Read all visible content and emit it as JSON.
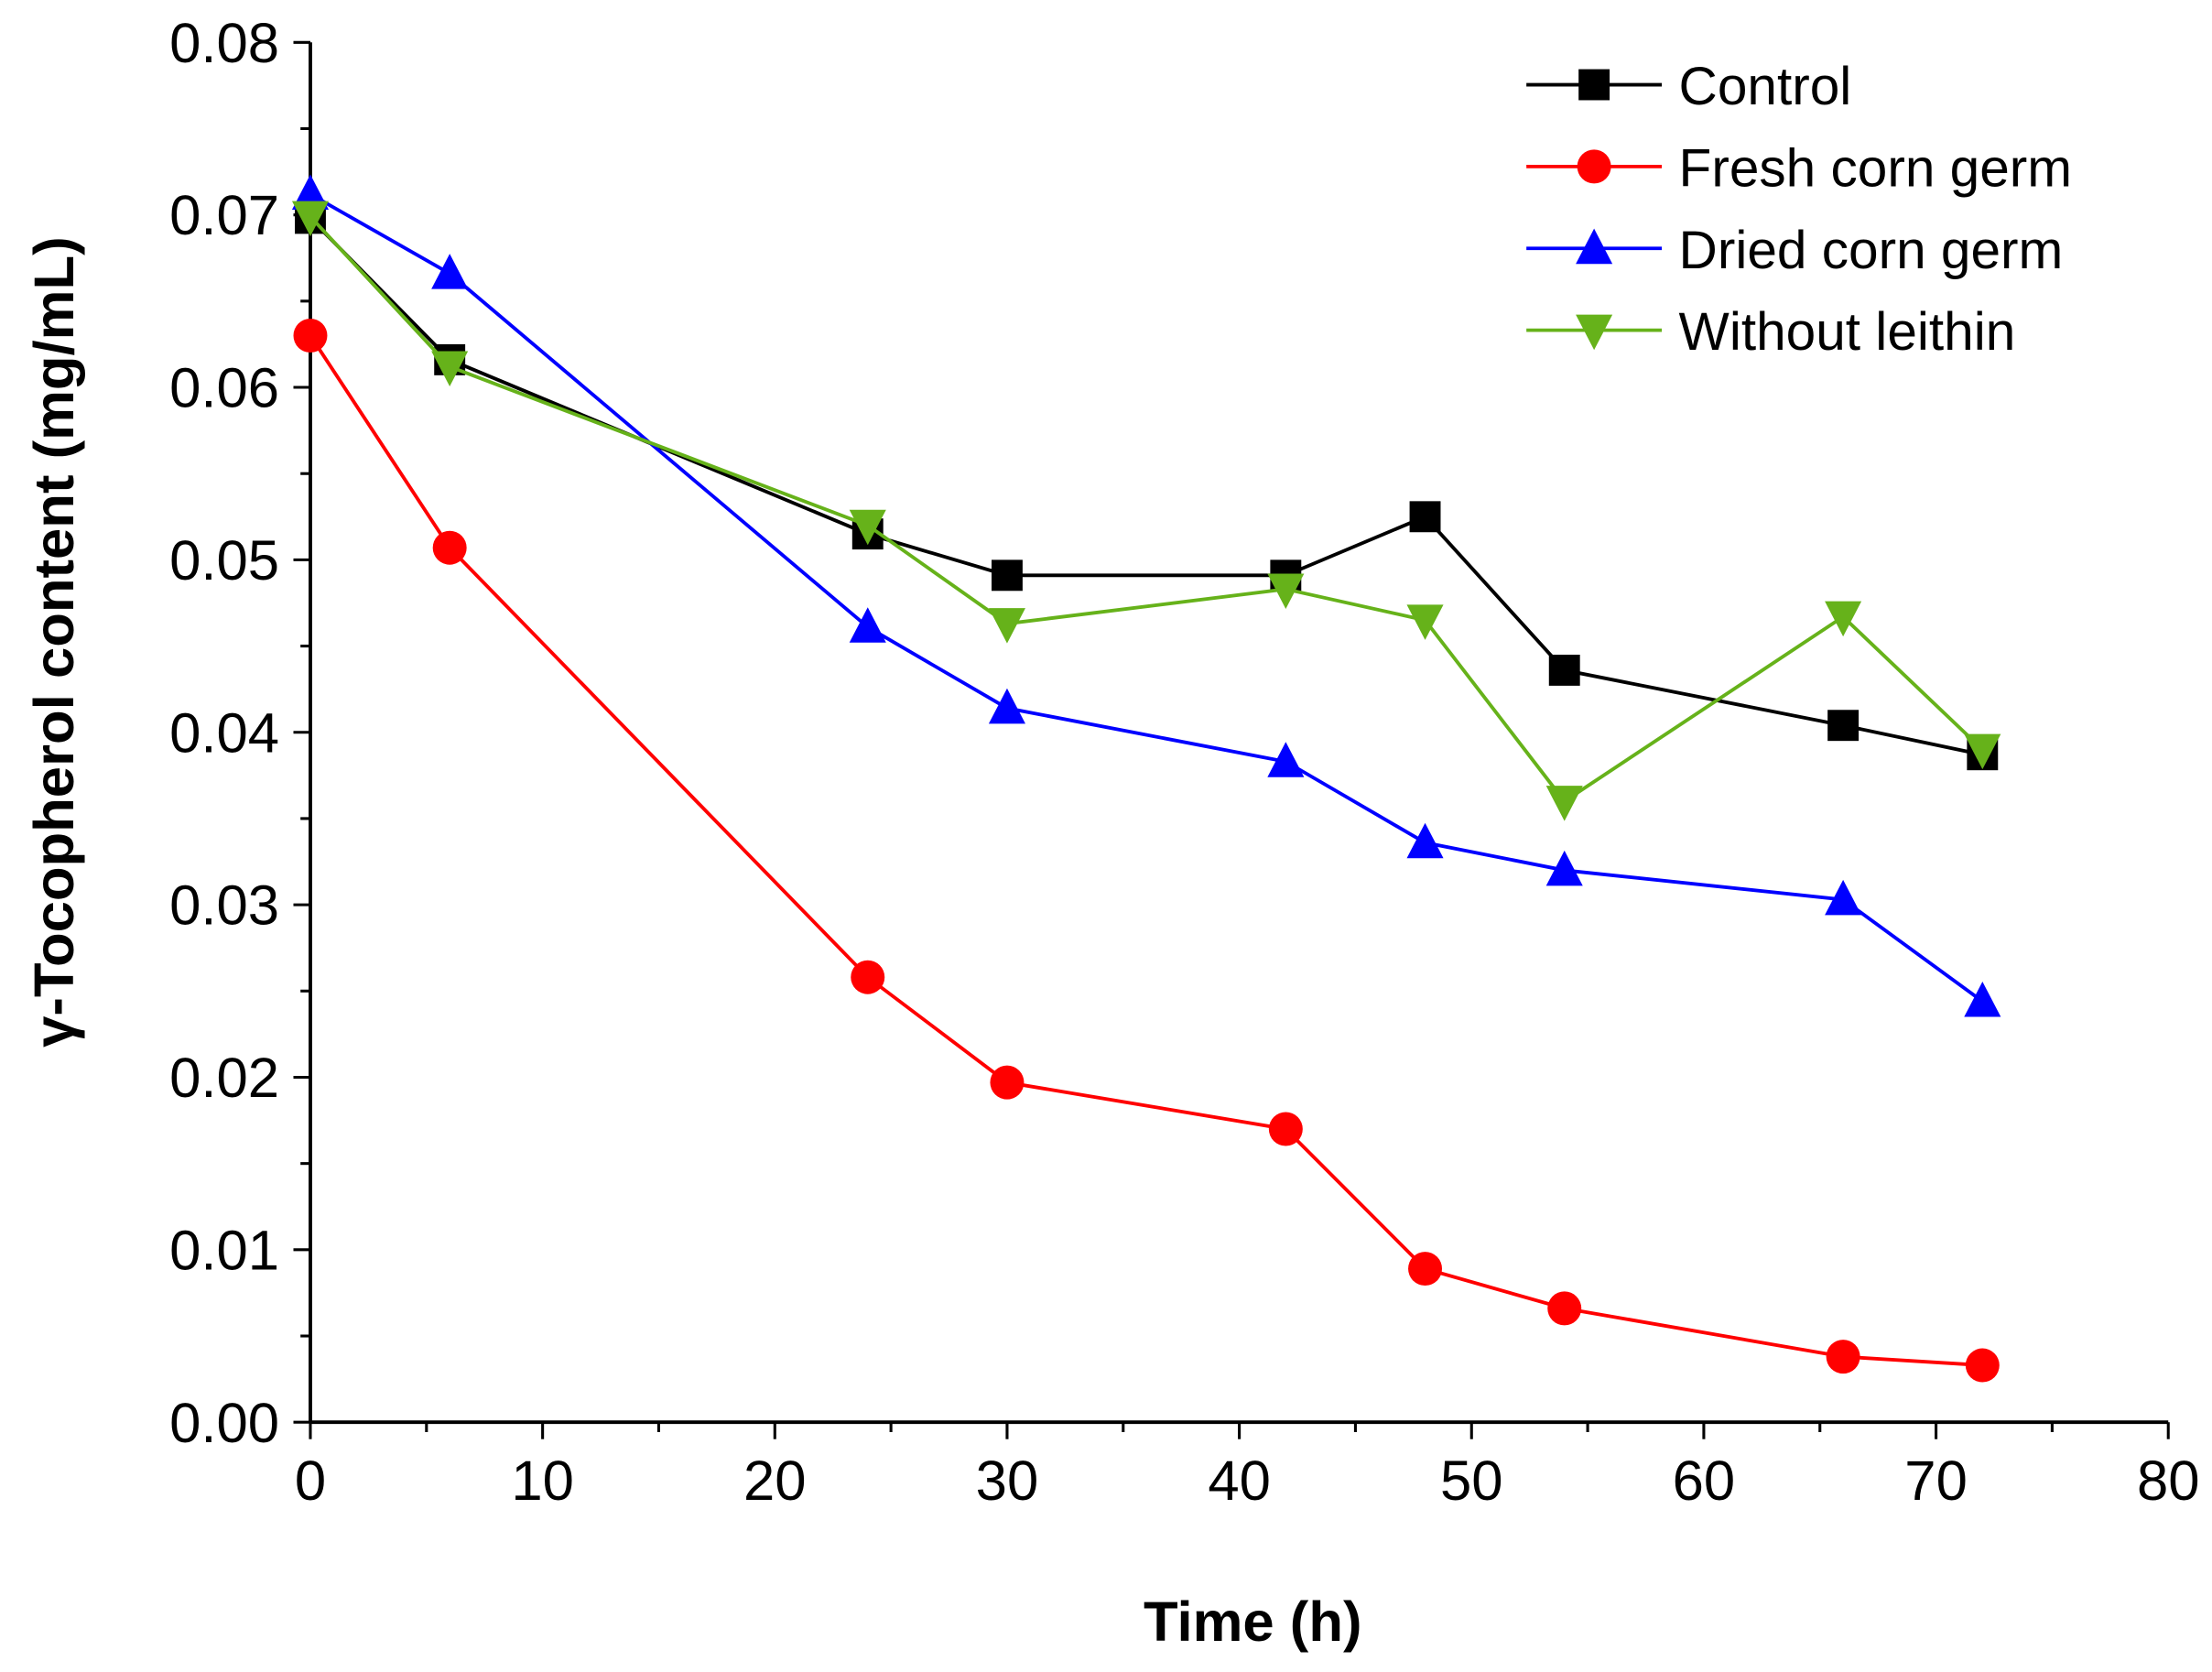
{
  "chart_data": {
    "type": "line",
    "title": "",
    "xlabel": "Time (h)",
    "ylabel": "γ-Tocopherol content (mg/mL)",
    "xlim": [
      0,
      80
    ],
    "ylim": [
      0,
      0.08
    ],
    "xticks": [
      "0",
      "10",
      "20",
      "30",
      "40",
      "50",
      "60",
      "70",
      "80"
    ],
    "yticks": [
      "0.00",
      "0.01",
      "0.02",
      "0.03",
      "0.04",
      "0.05",
      "0.06",
      "0.07",
      "0.08"
    ],
    "grid": false,
    "legend_position": "top-right",
    "x": [
      0,
      6,
      24,
      30,
      42,
      48,
      54,
      66,
      72
    ],
    "series": [
      {
        "name": "Control",
        "color": "#000000",
        "marker": "square",
        "values": [
          0.0698,
          0.0616,
          0.0515,
          0.0491,
          0.0491,
          0.0525,
          0.0436,
          0.0404,
          0.0387
        ]
      },
      {
        "name": "Fresh corn germ",
        "color": "#ff0000",
        "marker": "circle",
        "values": [
          0.063,
          0.0507,
          0.0258,
          0.0197,
          0.017,
          0.0089,
          0.0066,
          0.0038,
          0.0033
        ]
      },
      {
        "name": "Dried corn germ",
        "color": "#0000ff",
        "marker": "triangle-up",
        "values": [
          0.0712,
          0.0666,
          0.0461,
          0.0414,
          0.0383,
          0.0336,
          0.032,
          0.0303,
          0.0244
        ]
      },
      {
        "name": "Without leithin",
        "color": "#66b21a",
        "marker": "triangle-down",
        "values": [
          0.0699,
          0.0612,
          0.052,
          0.0463,
          0.0483,
          0.0465,
          0.036,
          0.0467,
          0.039
        ]
      }
    ]
  }
}
